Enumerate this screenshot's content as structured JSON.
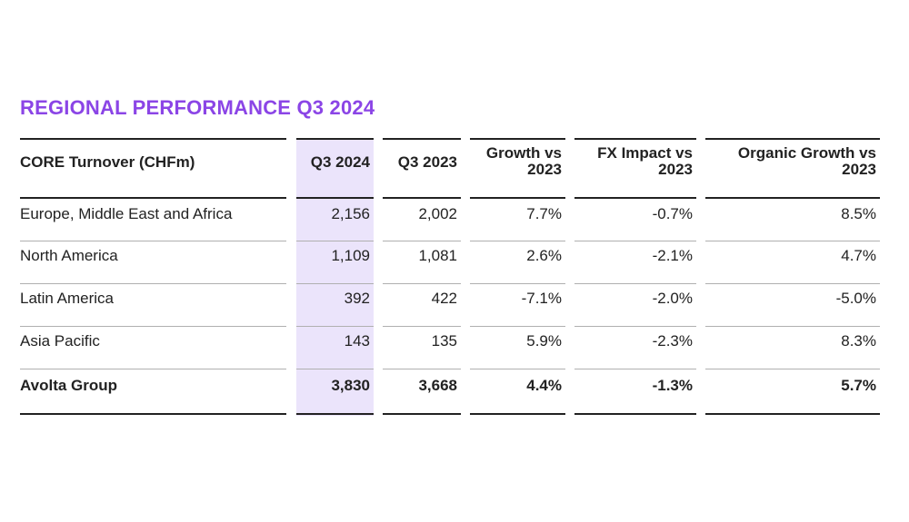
{
  "title": "REGIONAL PERFORMANCE Q3 2024",
  "colors": {
    "accent": "#8b45e6",
    "highlight_column": "#ebe4fb"
  },
  "table": {
    "headers": [
      "CORE Turnover (CHFm)",
      "Q3 2024",
      "Q3 2023",
      "Growth vs\n2023",
      "FX Impact vs\n2023",
      "Organic Growth vs\n2023"
    ],
    "header_lines": [
      [
        "CORE Turnover (CHFm)"
      ],
      [
        "Q3 2024"
      ],
      [
        "Q3 2023"
      ],
      [
        "Growth vs",
        "2023"
      ],
      [
        "FX Impact vs",
        "2023"
      ],
      [
        "Organic Growth vs",
        "2023"
      ]
    ],
    "rows": [
      [
        "Europe, Middle East and Africa",
        "2,156",
        "2,002",
        "7.7%",
        "-0.7%",
        "8.5%"
      ],
      [
        "North America",
        "1,109",
        "1,081",
        "2.6%",
        "-2.1%",
        "4.7%"
      ],
      [
        "Latin America",
        "392",
        "422",
        "-7.1%",
        "-2.0%",
        "-5.0%"
      ],
      [
        "Asia Pacific",
        "143",
        "135",
        "5.9%",
        "-2.3%",
        "8.3%"
      ]
    ],
    "total": [
      "Avolta Group",
      "3,830",
      "3,668",
      "4.4%",
      "-1.3%",
      "5.7%"
    ]
  }
}
